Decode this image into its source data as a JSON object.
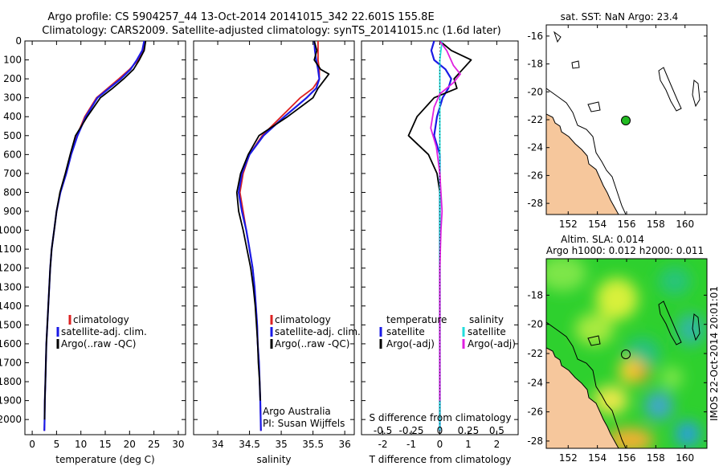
{
  "header": {
    "line1": "Argo profile: CS 5904257_44 13-Oct-2014 20141015_342 22.601S 155.8E",
    "line2": "Climatology: CARS2009. Satellite-adjusted climatology: synTS_20141015.nc (1.6d later)"
  },
  "colors": {
    "climatology": "#dd2222",
    "satellite": "#1a1ae6",
    "argo": "#000000",
    "sal_sat": "#22dddd",
    "sal_argo": "#e020e0",
    "land": "#f6c79c",
    "ocean_green": "#2ed02e",
    "float_marker": "#22bb22"
  },
  "chart_data": [
    {
      "type": "line",
      "title": "",
      "xlabel": "temperature (deg C)",
      "ylabel": "",
      "xlim": [
        -1.5,
        31.5
      ],
      "ylim": [
        2080,
        0
      ],
      "xticks": [
        "0",
        "5",
        "10",
        "15",
        "20",
        "25",
        "30"
      ],
      "yticks": [
        "0",
        "100",
        "200",
        "300",
        "400",
        "500",
        "600",
        "700",
        "800",
        "900",
        "1000",
        "1100",
        "1200",
        "1300",
        "1400",
        "1500",
        "1600",
        "1700",
        "1800",
        "1900",
        "2000"
      ],
      "legend": [
        "climatology",
        "satellite-adj. clim.",
        "Argo(..raw -QC)"
      ],
      "series": [
        {
          "name": "climatology",
          "color": "#dd2222",
          "x": [
            23.2,
            22.8,
            21.8,
            20.0,
            17.8,
            15.5,
            13.2,
            10.8,
            9.2,
            8.0,
            7.0,
            5.8,
            5.0,
            4.5,
            4.0,
            3.7,
            3.5,
            3.3,
            3.1,
            2.9,
            2.8,
            2.7,
            2.6,
            2.55,
            2.5
          ],
          "y": [
            0,
            50,
            100,
            150,
            200,
            250,
            300,
            400,
            500,
            600,
            700,
            800,
            900,
            1000,
            1100,
            1200,
            1300,
            1400,
            1500,
            1600,
            1700,
            1800,
            1900,
            2000,
            2060
          ]
        },
        {
          "name": "satellite-adj. clim.",
          "color": "#1a1ae6",
          "x": [
            23.0,
            22.6,
            21.5,
            20.2,
            18.2,
            15.8,
            13.4,
            11.0,
            9.3,
            8.0,
            7.0,
            5.8,
            5.0,
            4.5,
            4.0,
            3.7,
            3.5,
            3.3,
            3.1,
            2.9,
            2.8,
            2.7,
            2.6,
            2.55,
            2.5
          ],
          "y": [
            0,
            50,
            100,
            150,
            200,
            250,
            300,
            400,
            500,
            600,
            700,
            800,
            900,
            1000,
            1100,
            1200,
            1300,
            1400,
            1500,
            1600,
            1700,
            1800,
            1900,
            2000,
            2060
          ]
        },
        {
          "name": "Argo(..raw -QC)",
          "color": "#000000",
          "x": [
            23.3,
            23.0,
            22.0,
            20.8,
            18.8,
            16.5,
            14.0,
            11.3,
            8.9,
            7.8,
            6.8,
            5.7,
            5.0,
            4.5,
            4.0,
            3.7,
            3.5,
            3.3,
            3.1,
            2.9,
            2.8,
            2.7,
            2.6,
            2.55
          ],
          "y": [
            0,
            50,
            100,
            150,
            200,
            250,
            300,
            400,
            500,
            600,
            700,
            800,
            900,
            1000,
            1100,
            1200,
            1300,
            1400,
            1500,
            1600,
            1700,
            1800,
            1900,
            2000
          ]
        }
      ]
    },
    {
      "type": "line",
      "title": "",
      "xlabel": "salinity",
      "ylabel": "",
      "xlim": [
        33.62,
        36.15
      ],
      "ylim": [
        2080,
        0
      ],
      "xticks": [
        "34",
        "34.5",
        "35",
        "35.5",
        "36"
      ],
      "legend": [
        "climatology",
        "satellite-adj. clim.",
        "Argo(..raw -QC)"
      ],
      "annotations": [
        "Argo Australia",
        "PI: Susan Wijffels"
      ],
      "series": [
        {
          "name": "climatology",
          "color": "#dd2222",
          "x": [
            35.58,
            35.58,
            35.58,
            35.6,
            35.6,
            35.5,
            35.3,
            35.0,
            34.7,
            34.5,
            34.4,
            34.35,
            34.4,
            34.45,
            34.5,
            34.55,
            34.58,
            34.6,
            34.62,
            34.63,
            34.65,
            34.66,
            34.67,
            34.68
          ],
          "y": [
            0,
            50,
            100,
            150,
            200,
            250,
            300,
            400,
            500,
            600,
            700,
            800,
            900,
            1000,
            1100,
            1200,
            1300,
            1400,
            1500,
            1600,
            1700,
            1800,
            1900,
            2060
          ]
        },
        {
          "name": "satellite-adj. clim.",
          "color": "#1a1ae6",
          "x": [
            35.52,
            35.53,
            35.55,
            35.58,
            35.6,
            35.55,
            35.4,
            35.05,
            34.72,
            34.5,
            34.38,
            34.33,
            34.38,
            34.45,
            34.5,
            34.55,
            34.58,
            34.6,
            34.62,
            34.63,
            34.65,
            34.66,
            34.67,
            34.68
          ],
          "y": [
            0,
            50,
            100,
            150,
            200,
            250,
            300,
            400,
            500,
            600,
            700,
            800,
            900,
            1000,
            1100,
            1200,
            1300,
            1400,
            1500,
            1600,
            1700,
            1800,
            1900,
            2060
          ]
        },
        {
          "name": "Argo(..raw -QC)",
          "color": "#000000",
          "x": [
            35.52,
            35.56,
            35.52,
            35.62,
            35.75,
            35.58,
            35.5,
            35.1,
            34.65,
            34.48,
            34.36,
            34.3,
            34.33,
            34.4,
            34.46,
            34.52,
            34.56,
            34.59,
            34.61,
            34.63,
            34.64,
            34.66,
            34.67
          ],
          "y": [
            0,
            50,
            100,
            150,
            175,
            250,
            300,
            400,
            500,
            600,
            700,
            800,
            900,
            1000,
            1100,
            1200,
            1300,
            1400,
            1500,
            1600,
            1700,
            1800,
            1900
          ]
        }
      ]
    },
    {
      "type": "line",
      "title": "",
      "xlabel": "T difference from climatology",
      "xlabel_top": "S difference from climatology",
      "xlim": [
        -2.75,
        2.75
      ],
      "ylim": [
        2080,
        0
      ],
      "xticks": [
        "-2",
        "-1",
        "0",
        "1",
        "2"
      ],
      "xticks_top": [
        "-0.5",
        "-0.25",
        "0",
        "0.25",
        "0.5"
      ],
      "legend_left_title": "temperature",
      "legend_right_title": "salinity",
      "legend": [
        "satellite",
        "Argo(-adj)",
        "satellite",
        "Argo(-adj)"
      ],
      "series": [
        {
          "name": "T satellite",
          "color": "#1a1ae6",
          "x": [
            -0.2,
            -0.3,
            -0.2,
            0.2,
            0.4,
            0.3,
            0.1,
            -0.1,
            -0.2,
            0.0,
            0.0,
            0.0,
            0.0,
            0.0,
            0.0,
            0.0,
            0.0,
            0.0,
            0.0,
            0.0,
            0.0,
            0.0
          ],
          "y": [
            0,
            50,
            100,
            150,
            200,
            250,
            300,
            400,
            500,
            600,
            700,
            800,
            900,
            1000,
            1100,
            1200,
            1300,
            1400,
            1500,
            1600,
            1800,
            2060
          ]
        },
        {
          "name": "T Argo(-adj)",
          "color": "#000000",
          "x": [
            0.0,
            0.4,
            1.1,
            0.8,
            0.5,
            0.6,
            -0.2,
            -0.8,
            -1.1,
            -0.4,
            -0.1,
            0.0,
            0.0,
            0.0,
            0.0,
            0.0,
            0.0,
            0.0,
            0.0,
            0.0
          ],
          "y": [
            0,
            50,
            100,
            150,
            200,
            250,
            300,
            400,
            500,
            600,
            700,
            800,
            900,
            1000,
            1100,
            1200,
            1300,
            1400,
            1500,
            2000
          ]
        },
        {
          "name": "S satellite",
          "color": "#22dddd",
          "x": [
            0.02,
            0.01,
            0.0,
            0.0,
            0.0,
            0.0,
            0.0,
            0.0,
            0.0,
            0.0,
            0.0,
            0.0,
            0.0,
            0.0
          ],
          "y": [
            0,
            50,
            100,
            200,
            300,
            400,
            500,
            700,
            900,
            1100,
            1300,
            1500,
            1800,
            2060
          ]
        },
        {
          "name": "S Argo(-adj)",
          "color": "#e020e0",
          "x": [
            0.0,
            0.06,
            0.12,
            0.18,
            0.12,
            0.0,
            -0.05,
            -0.08,
            -0.03,
            0.0,
            0.01,
            0.02,
            0.01,
            0.0,
            0.0,
            0.0
          ],
          "y": [
            0,
            50,
            130,
            175,
            220,
            280,
            350,
            460,
            560,
            700,
            800,
            900,
            1000,
            1200,
            1500,
            1900
          ]
        }
      ]
    },
    {
      "type": "map",
      "title": "sat. SST: NaN Argo: 23.4",
      "xticks": [
        "152",
        "154",
        "156",
        "158",
        "160"
      ],
      "yticks": [
        "-16",
        "-18",
        "-20",
        "-22",
        "-24",
        "-26",
        "-28"
      ],
      "xlim": [
        150.5,
        161.5
      ],
      "ylim": [
        -28.8,
        -15.2
      ],
      "float_lon": 155.8,
      "float_lat": -22.601
    },
    {
      "type": "heatmap",
      "title_line1": "Altim. SLA: 0.014",
      "title_line2": "Argo h1000: 0.012 h2000: 0.011",
      "xticks": [
        "152",
        "154",
        "156",
        "158",
        "160"
      ],
      "yticks": [
        "-18",
        "-20",
        "-22",
        "-24",
        "-26",
        "-28"
      ],
      "xlim": [
        150.5,
        161.5
      ],
      "ylim": [
        -28.5,
        -15.5
      ],
      "float_lon": 155.8,
      "float_lat": -22.601,
      "side_label": "IMOS 22-Oct-2014 20:01:01"
    }
  ]
}
